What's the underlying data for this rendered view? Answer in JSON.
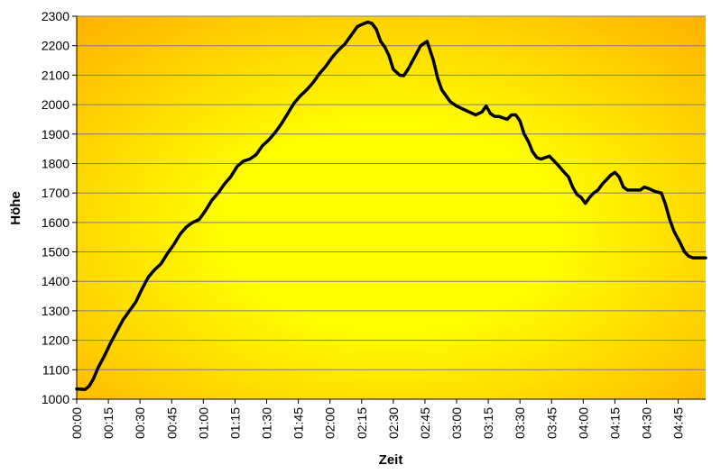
{
  "chart_data": {
    "type": "line",
    "title": "",
    "xlabel": "Zeit",
    "ylabel": "Höhe",
    "ylim": [
      1000,
      2300
    ],
    "yticks": [
      "1000",
      "1100",
      "1200",
      "1300",
      "1400",
      "1500",
      "1600",
      "1700",
      "1800",
      "1900",
      "2000",
      "2100",
      "2200",
      "2300"
    ],
    "xlim_minutes": [
      0,
      298
    ],
    "xticks": [
      "00:00",
      "00:15",
      "00:30",
      "00:45",
      "01:00",
      "01:15",
      "01:30",
      "01:45",
      "02:00",
      "02:15",
      "02:30",
      "02:45",
      "03:00",
      "03:15",
      "03:30",
      "03:45",
      "04:00",
      "04:15",
      "04:30",
      "04:45"
    ],
    "grid": "horizontal",
    "legend": "none",
    "colors": {
      "line": "#000000",
      "grid": "#7f7f7f",
      "plot_center": "#ffff00",
      "plot_edge": "#ffb000"
    },
    "series": [
      {
        "x": [
          "00:00",
          "00:02",
          "00:04",
          "00:06",
          "00:08",
          "00:10",
          "00:13",
          "00:16",
          "00:19",
          "00:22",
          "00:25",
          "00:28",
          "00:31",
          "00:34",
          "00:37",
          "00:40",
          "00:43",
          "00:46",
          "00:49",
          "00:52",
          "00:55",
          "00:58",
          "01:01",
          "01:04",
          "01:07",
          "01:10",
          "01:13",
          "01:16",
          "01:19",
          "01:22",
          "01:25",
          "01:28",
          "01:31",
          "01:34",
          "01:37",
          "01:40",
          "01:43",
          "01:46",
          "01:49",
          "01:52",
          "01:55",
          "01:58",
          "02:01",
          "02:04",
          "02:07",
          "02:10",
          "02:13",
          "02:16",
          "02:18",
          "02:20",
          "02:22",
          "02:24",
          "02:26",
          "02:28",
          "02:30",
          "02:33",
          "02:35",
          "02:37",
          "02:40",
          "02:43",
          "02:46",
          "02:49",
          "02:51",
          "02:53",
          "02:55",
          "02:57",
          "03:00",
          "03:03",
          "03:06",
          "03:09",
          "03:12",
          "03:14",
          "03:16",
          "03:18",
          "03:20",
          "03:22",
          "03:24",
          "03:26",
          "03:28",
          "03:30",
          "03:32",
          "03:34",
          "03:36",
          "03:38",
          "03:40",
          "03:42",
          "03:44",
          "03:46",
          "03:48",
          "03:51",
          "03:53",
          "03:55",
          "03:57",
          "03:59",
          "04:01",
          "04:03",
          "04:05",
          "04:07",
          "04:09",
          "04:11",
          "04:13",
          "04:15",
          "04:17",
          "04:19",
          "04:21",
          "04:23",
          "04:25",
          "04:27",
          "04:29",
          "04:31",
          "04:34",
          "04:37",
          "04:39",
          "04:41",
          "04:43",
          "04:46",
          "04:48",
          "04:50",
          "04:52",
          "04:54",
          "04:56",
          "04:58"
        ],
        "y": [
          1035,
          1034,
          1033,
          1045,
          1070,
          1105,
          1145,
          1190,
          1230,
          1270,
          1300,
          1330,
          1375,
          1415,
          1440,
          1460,
          1495,
          1525,
          1560,
          1585,
          1600,
          1610,
          1640,
          1675,
          1700,
          1730,
          1755,
          1790,
          1808,
          1815,
          1830,
          1860,
          1880,
          1905,
          1935,
          1970,
          2005,
          2030,
          2050,
          2075,
          2105,
          2130,
          2160,
          2185,
          2205,
          2235,
          2265,
          2275,
          2280,
          2275,
          2255,
          2215,
          2195,
          2165,
          2120,
          2100,
          2098,
          2120,
          2160,
          2200,
          2215,
          2150,
          2090,
          2050,
          2030,
          2010,
          1995,
          1985,
          1975,
          1965,
          1975,
          1995,
          1970,
          1960,
          1960,
          1955,
          1950,
          1965,
          1965,
          1945,
          1900,
          1875,
          1840,
          1820,
          1815,
          1820,
          1825,
          1810,
          1795,
          1770,
          1755,
          1720,
          1695,
          1685,
          1665,
          1685,
          1700,
          1710,
          1730,
          1745,
          1760,
          1770,
          1755,
          1720,
          1710,
          1710,
          1710,
          1710,
          1720,
          1715,
          1705,
          1700,
          1660,
          1610,
          1570,
          1530,
          1500,
          1485,
          1480,
          1480,
          1480,
          1480
        ]
      }
    ]
  }
}
